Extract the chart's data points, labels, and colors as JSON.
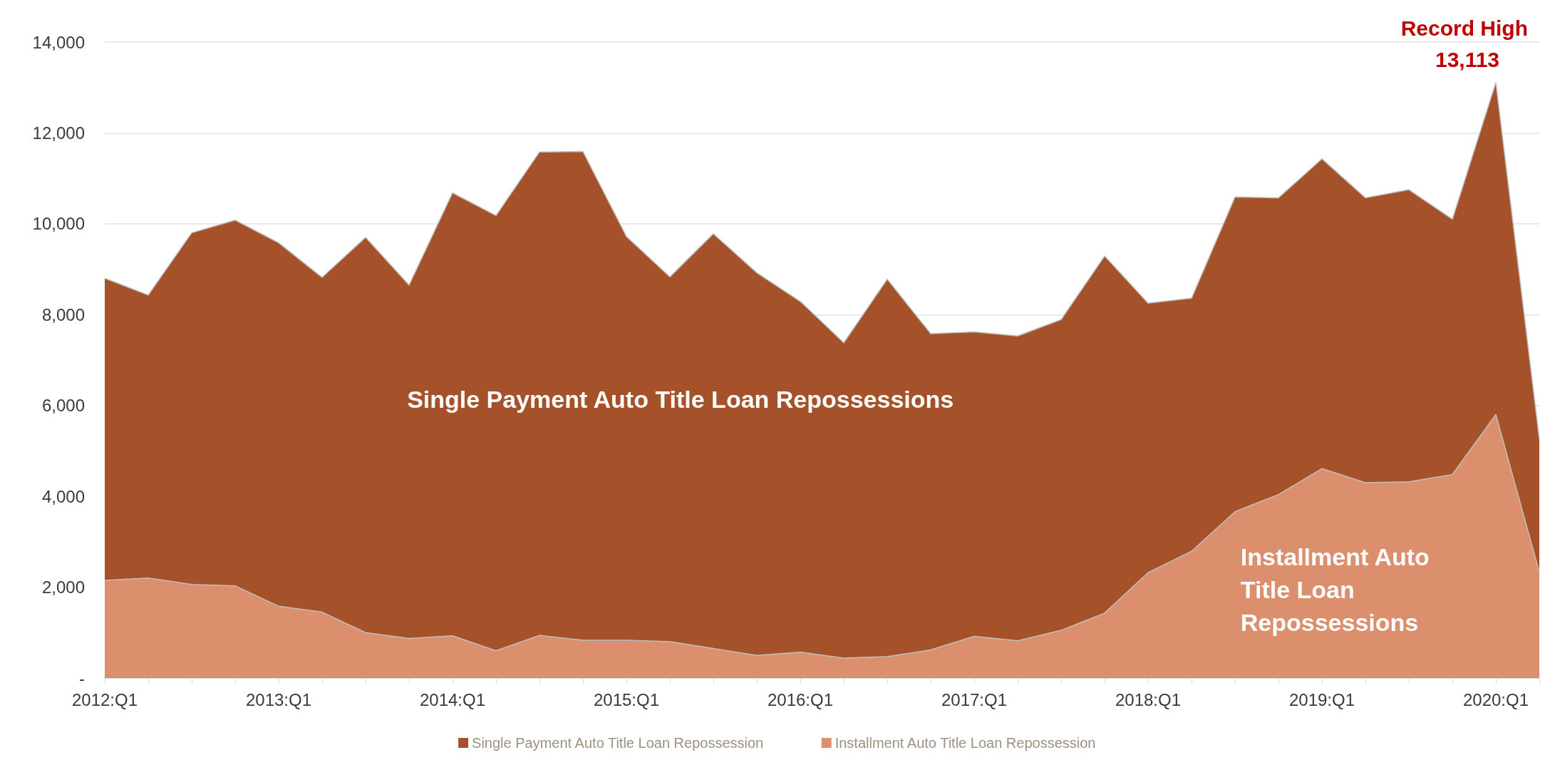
{
  "chart_data": {
    "type": "area",
    "stacked": true,
    "categories": [
      "2012:Q1",
      null,
      null,
      null,
      "2013:Q1",
      null,
      null,
      null,
      "2014:Q1",
      null,
      null,
      null,
      "2015:Q1",
      null,
      null,
      null,
      "2016:Q1",
      null,
      null,
      null,
      "2017:Q1",
      null,
      null,
      null,
      "2018:Q1",
      null,
      null,
      null,
      "2019:Q1",
      null,
      null,
      null,
      "2020:Q1",
      null
    ],
    "series": [
      {
        "name": "Installment Auto Title Loan Repossession",
        "color": "#db8f6d",
        "values": [
          2150,
          2200,
          2060,
          2030,
          1580,
          1450,
          1000,
          870,
          930,
          600,
          940,
          830,
          830,
          800,
          650,
          500,
          570,
          440,
          470,
          620,
          920,
          820,
          1050,
          1430,
          2320,
          2790,
          3660,
          4040,
          4610,
          4300,
          4320,
          4480,
          5800,
          2330
        ]
      },
      {
        "name": "Single Payment Auto Title Loan Repossession",
        "color": "#a5522a",
        "values": [
          6650,
          6230,
          7740,
          8050,
          8000,
          7370,
          8700,
          7780,
          9750,
          9580,
          10640,
          10760,
          8890,
          8030,
          9130,
          8420,
          7720,
          6940,
          8310,
          6960,
          6700,
          6710,
          6840,
          7860,
          5930,
          5570,
          6930,
          6530,
          6820,
          6270,
          6430,
          5620,
          7310,
          2940
        ]
      }
    ],
    "ylim": [
      0,
      14000
    ],
    "yticks": [
      {
        "value": 0,
        "label": "-"
      },
      {
        "value": 2000,
        "label": "2,000"
      },
      {
        "value": 4000,
        "label": "4,000"
      },
      {
        "value": 6000,
        "label": "6,000"
      },
      {
        "value": 8000,
        "label": "8,000"
      },
      {
        "value": 10000,
        "label": "10,000"
      },
      {
        "value": 12000,
        "label": "12,000"
      },
      {
        "value": 14000,
        "label": "14,000"
      }
    ],
    "grid": "y",
    "legend": "bottom",
    "annotations": [
      "Single Payment Auto Title Loan Repossessions",
      "Installment Auto Title Loan Repossessions",
      {
        "text": "Record High 13,113",
        "x": "2020:Q1",
        "y": 13113
      }
    ]
  }
}
